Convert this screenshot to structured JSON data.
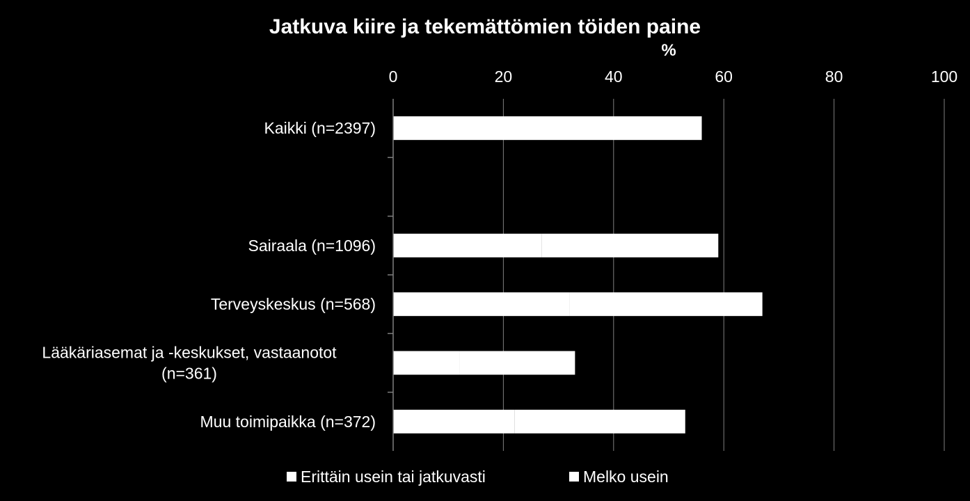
{
  "chart_data": {
    "type": "bar",
    "orientation": "horizontal",
    "stacked": true,
    "title": "Jatkuva kiire ja tekemättömien töiden paine",
    "xlabel": "%",
    "xlim": [
      0,
      100
    ],
    "xticks": [
      "0",
      "20",
      "40",
      "60",
      "80",
      "100"
    ],
    "grid": true,
    "legend_position": "bottom",
    "categories": [
      [
        "Kaikki (n=2397)"
      ],
      [
        ""
      ],
      [
        "Sairaala (n=1096)"
      ],
      [
        "Terveyskeskus (n=568)"
      ],
      [
        "Lääkäriasemat ja -keskukset, vastaanotot",
        "(n=361)"
      ],
      [
        "Muu toimipaikka (n=372)"
      ]
    ],
    "series": [
      {
        "name": "Erittäin usein tai jatkuvasti",
        "color": "#ffffff",
        "values": [
          25,
          null,
          27,
          32,
          12,
          22
        ]
      },
      {
        "name": "Melko usein",
        "color": "#ffffff",
        "values": [
          31,
          null,
          32,
          35,
          21,
          31
        ]
      }
    ]
  }
}
